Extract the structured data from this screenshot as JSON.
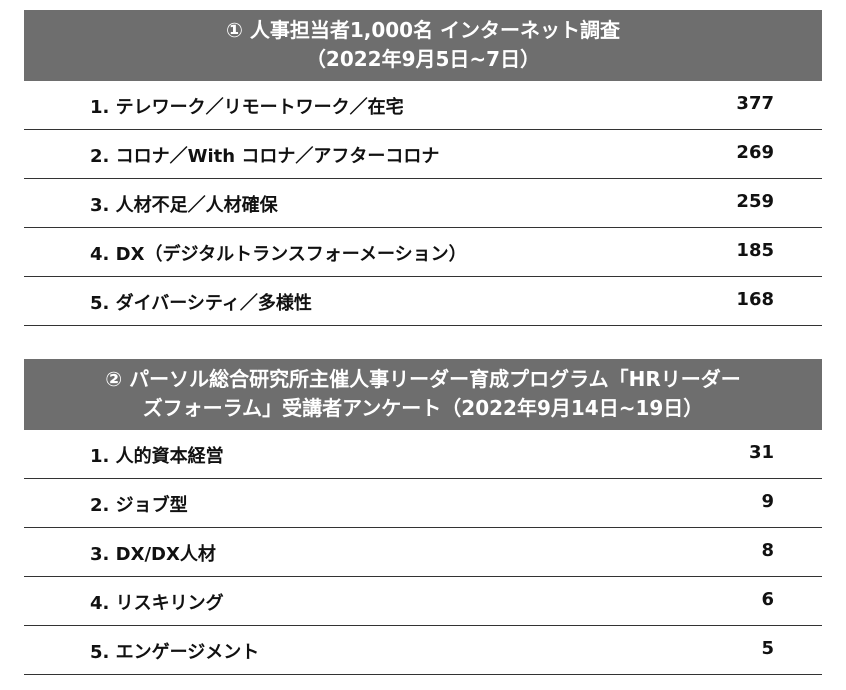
{
  "survey1": {
    "title_line1": "① 人事担当者1,000名 インターネット調査",
    "title_line2": "（2022年9月5日~7日）",
    "rows": [
      {
        "label": "1. テレワーク／リモートワーク／在宅",
        "value": "377"
      },
      {
        "label": "2. コロナ／With コロナ／アフターコロナ",
        "value": "269"
      },
      {
        "label": "3. 人材不足／人材確保",
        "value": "259"
      },
      {
        "label": "4. DX（デジタルトランスフォーメーション）",
        "value": "185"
      },
      {
        "label": "5. ダイバーシティ／多様性",
        "value": "168"
      }
    ]
  },
  "survey2": {
    "title_line1": "② パーソル総合研究所主催人事リーダー育成プログラム「HRリーダー",
    "title_line2": "ズフォーラム」受講者アンケート（2022年9月14日~19日）",
    "rows": [
      {
        "label": "1. 人的資本経営",
        "value": "31"
      },
      {
        "label": "2. ジョブ型",
        "value": "9"
      },
      {
        "label": "3. DX/DX人材",
        "value": "8"
      },
      {
        "label": "4. リスキリング",
        "value": "6"
      },
      {
        "label": "5. エンゲージメント",
        "value": "5"
      }
    ]
  }
}
